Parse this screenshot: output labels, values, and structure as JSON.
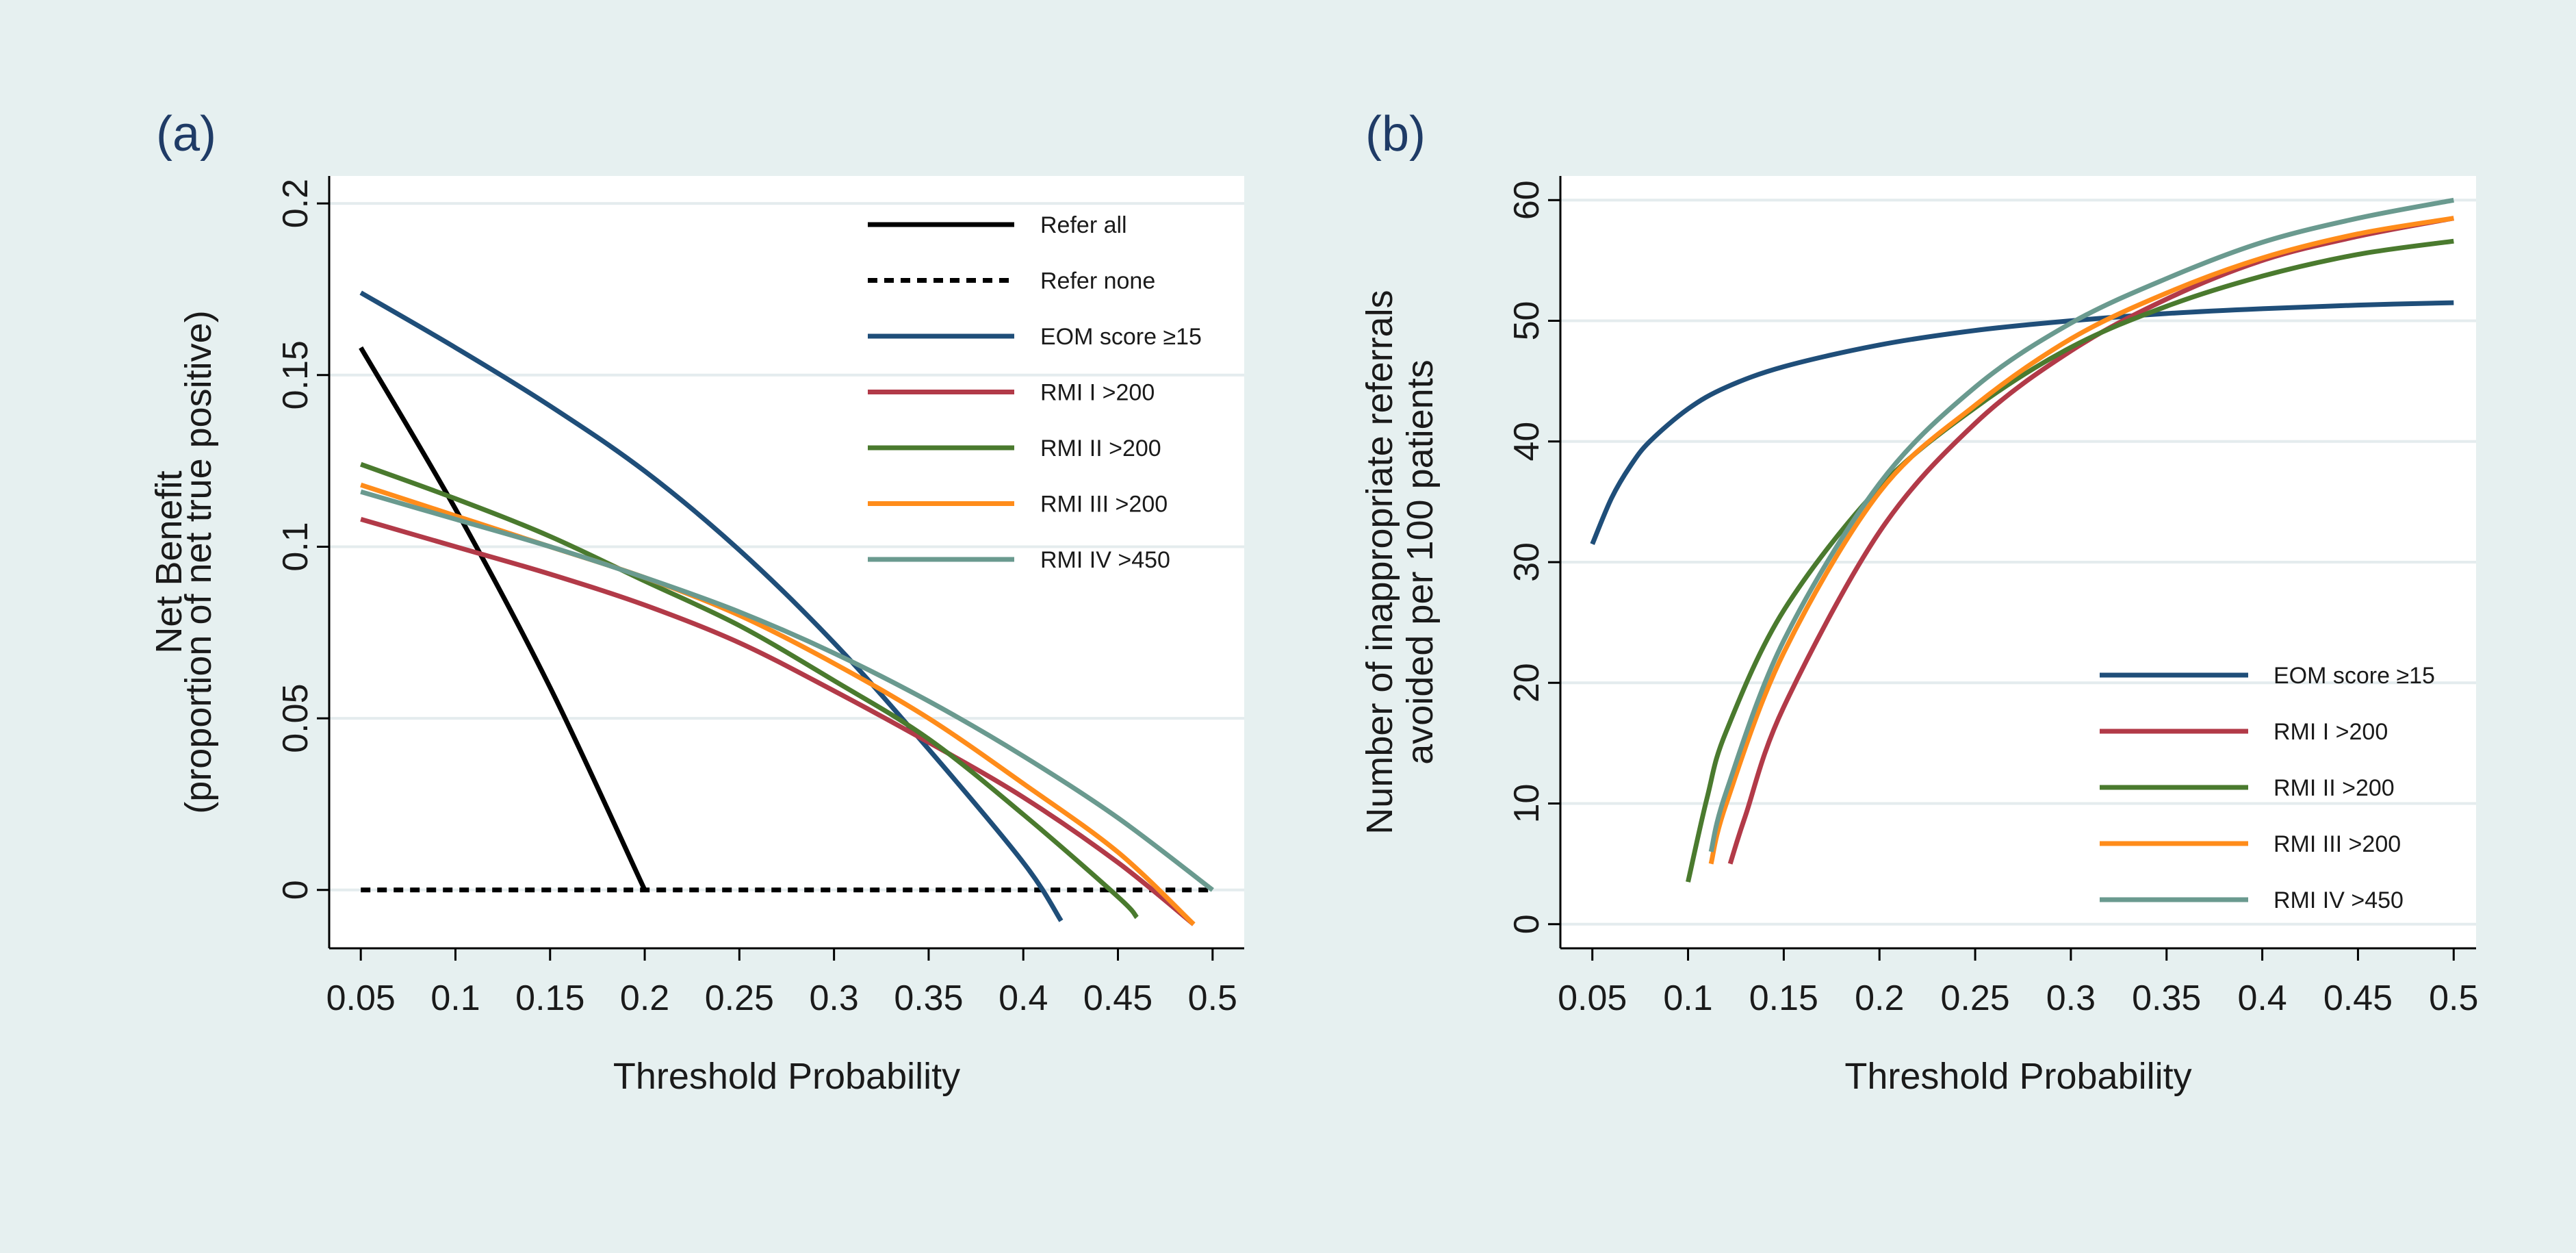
{
  "colors": {
    "background": "#e6f0f0",
    "plot_background": "#ffffff",
    "grid": "#e4ecee",
    "axis": "#000000",
    "text": "#1a1a1a",
    "panel_label": "#1f3b66"
  },
  "chart_data": [
    {
      "panel_label": "(a)",
      "type": "line",
      "title": "",
      "xlabel": "Threshold Probability",
      "ylabel": [
        "Net Benefit",
        "(proportion of net true positive)"
      ],
      "xlim": [
        0.0333,
        0.5167
      ],
      "ylim": [
        -0.017,
        0.208
      ],
      "x_ticks": [
        0.05,
        0.1,
        0.15,
        0.2,
        0.25,
        0.3,
        0.35,
        0.4,
        0.45,
        0.5
      ],
      "x_tick_labels": [
        "0.05",
        "0.1",
        "0.15",
        "0.2",
        "0.25",
        "0.3",
        "0.35",
        "0.4",
        "0.45",
        "0.5"
      ],
      "y_ticks": [
        0,
        0.05,
        0.1,
        0.15,
        0.2
      ],
      "y_tick_labels": [
        "0",
        "0.05",
        "0.1",
        "0.15",
        "0.2"
      ],
      "grid": true,
      "legend_position": "top-right",
      "series": [
        {
          "name": "Refer all",
          "color": "#000000",
          "dash": "solid",
          "x": [
            0.05,
            0.1,
            0.15,
            0.2
          ],
          "y": [
            0.158,
            0.111,
            0.059,
            0.0
          ]
        },
        {
          "name": "Refer none",
          "color": "#000000",
          "dash": "dashed",
          "x": [
            0.05,
            0.5
          ],
          "y": [
            0.0,
            0.0
          ]
        },
        {
          "name": "EOM score ≥15",
          "color": "#1f4e79",
          "dash": "solid",
          "x": [
            0.05,
            0.1,
            0.15,
            0.2,
            0.25,
            0.3,
            0.35,
            0.4,
            0.42
          ],
          "y": [
            0.174,
            0.158,
            0.141,
            0.122,
            0.099,
            0.072,
            0.041,
            0.008,
            -0.009
          ]
        },
        {
          "name": "RMI I >200",
          "color": "#b23a48",
          "dash": "solid",
          "x": [
            0.05,
            0.1,
            0.15,
            0.2,
            0.25,
            0.3,
            0.35,
            0.4,
            0.45,
            0.49
          ],
          "y": [
            0.108,
            0.1,
            0.092,
            0.083,
            0.072,
            0.058,
            0.043,
            0.027,
            0.008,
            -0.01
          ]
        },
        {
          "name": "RMI II >200",
          "color": "#4a7a2e",
          "dash": "solid",
          "x": [
            0.05,
            0.1,
            0.15,
            0.2,
            0.25,
            0.3,
            0.35,
            0.4,
            0.45,
            0.46
          ],
          "y": [
            0.124,
            0.114,
            0.103,
            0.09,
            0.077,
            0.061,
            0.044,
            0.022,
            -0.002,
            -0.008
          ]
        },
        {
          "name": "RMI III >200",
          "color": "#ff8c1a",
          "dash": "solid",
          "x": [
            0.05,
            0.1,
            0.15,
            0.2,
            0.25,
            0.3,
            0.35,
            0.4,
            0.45,
            0.49
          ],
          "y": [
            0.118,
            0.109,
            0.1,
            0.091,
            0.08,
            0.066,
            0.05,
            0.031,
            0.011,
            -0.01
          ]
        },
        {
          "name": "RMI IV >450",
          "color": "#6a9a8f",
          "dash": "solid",
          "x": [
            0.05,
            0.1,
            0.15,
            0.2,
            0.25,
            0.3,
            0.35,
            0.4,
            0.45,
            0.5
          ],
          "y": [
            0.116,
            0.108,
            0.1,
            0.091,
            0.081,
            0.069,
            0.055,
            0.039,
            0.021,
            0.0
          ]
        }
      ]
    },
    {
      "panel_label": "(b)",
      "type": "line",
      "title": "",
      "xlabel": "Threshold Probability",
      "ylabel": [
        "Number of inappropriate referrals",
        "avoided per 100 patients"
      ],
      "xlim": [
        0.0333,
        0.5117
      ],
      "ylim": [
        -2,
        62
      ],
      "x_ticks": [
        0.05,
        0.1,
        0.15,
        0.2,
        0.25,
        0.3,
        0.35,
        0.4,
        0.45,
        0.5
      ],
      "x_tick_labels": [
        "0.05",
        "0.1",
        "0.15",
        "0.2",
        "0.25",
        "0.3",
        "0.35",
        "0.4",
        "0.45",
        "0.5"
      ],
      "y_ticks": [
        0,
        10,
        20,
        30,
        40,
        50,
        60
      ],
      "y_tick_labels": [
        "0",
        "10",
        "20",
        "30",
        "40",
        "50",
        "60"
      ],
      "grid": true,
      "legend_position": "bottom-right",
      "series": [
        {
          "name": "EOM score ≥15",
          "color": "#1f4e79",
          "dash": "solid",
          "x": [
            0.05,
            0.06,
            0.07,
            0.08,
            0.1,
            0.12,
            0.15,
            0.2,
            0.25,
            0.3,
            0.35,
            0.4,
            0.45,
            0.5
          ],
          "y": [
            31.5,
            35.3,
            38.0,
            40.0,
            42.7,
            44.5,
            46.2,
            48.0,
            49.2,
            50.0,
            50.6,
            51.0,
            51.3,
            51.5
          ]
        },
        {
          "name": "RMI I >200",
          "color": "#b23a48",
          "dash": "solid",
          "x": [
            0.122,
            0.13,
            0.15,
            0.2,
            0.25,
            0.3,
            0.35,
            0.4,
            0.45,
            0.5
          ],
          "y": [
            5,
            9,
            18,
            32.5,
            41.5,
            47.5,
            51.8,
            55,
            57,
            58.5
          ]
        },
        {
          "name": "RMI II >200",
          "color": "#4a7a2e",
          "dash": "solid",
          "x": [
            0.1,
            0.11,
            0.12,
            0.15,
            0.2,
            0.25,
            0.3,
            0.35,
            0.4,
            0.45,
            0.5
          ],
          "y": [
            3.5,
            10.5,
            16,
            26,
            36.2,
            42.8,
            47.8,
            51.2,
            53.7,
            55.5,
            56.6
          ]
        },
        {
          "name": "RMI III >200",
          "color": "#ff8c1a",
          "dash": "solid",
          "x": [
            0.112,
            0.12,
            0.15,
            0.2,
            0.25,
            0.3,
            0.35,
            0.4,
            0.45,
            0.5
          ],
          "y": [
            5,
            10,
            22.5,
            35.8,
            43,
            48.5,
            52.3,
            55.2,
            57.2,
            58.5
          ]
        },
        {
          "name": "RMI IV >450",
          "color": "#6a9a8f",
          "dash": "solid",
          "x": [
            0.112,
            0.12,
            0.15,
            0.2,
            0.25,
            0.3,
            0.35,
            0.4,
            0.45,
            0.5
          ],
          "y": [
            6,
            11,
            23.5,
            36.5,
            44.5,
            49.8,
            53.5,
            56.5,
            58.5,
            60
          ]
        }
      ]
    }
  ]
}
